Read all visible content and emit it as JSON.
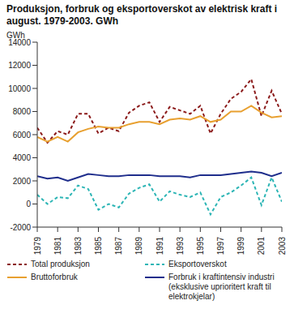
{
  "chart_data": {
    "type": "line",
    "title": "Produksjon, forbruk og eksportoverskot av elektrisk kraft i august. 1979-2003. GWh",
    "y_label": "GWh",
    "x": [
      1979,
      1980,
      1981,
      1982,
      1983,
      1984,
      1985,
      1986,
      1987,
      1988,
      1989,
      1990,
      1991,
      1992,
      1993,
      1994,
      1995,
      1996,
      1997,
      1998,
      1999,
      2000,
      2001,
      2002,
      2003
    ],
    "xlim": [
      1979,
      2003
    ],
    "xticks": [
      1979,
      1981,
      1983,
      1985,
      1987,
      1989,
      1991,
      1993,
      1995,
      1997,
      1999,
      2001,
      2003
    ],
    "ylim": [
      -2000,
      14000
    ],
    "yticks": [
      -2000,
      0,
      2000,
      4000,
      6000,
      8000,
      10000,
      12000,
      14000
    ],
    "grid": false,
    "legend": "bottom",
    "series": [
      {
        "name": "Total produksjon",
        "color": "#8b1a1a",
        "line_style": "dashed",
        "values": [
          6600,
          5300,
          6300,
          6000,
          7800,
          7800,
          6100,
          6600,
          6300,
          7900,
          8500,
          8800,
          7100,
          8400,
          8100,
          7800,
          8500,
          6100,
          7800,
          9100,
          9700,
          10800,
          7600,
          9800,
          7800
        ]
      },
      {
        "name": "Eksportoverskot",
        "color": "#2cb5b5",
        "line_style": "dashed",
        "values": [
          800,
          0,
          600,
          500,
          1600,
          1300,
          -500,
          0,
          -300,
          900,
          1400,
          1700,
          200,
          1100,
          800,
          600,
          1000,
          -900,
          600,
          1000,
          1600,
          2300,
          -100,
          2300,
          200
        ]
      },
      {
        "name": "Bruttoforbruk",
        "color": "#e8a030",
        "line_style": "solid",
        "values": [
          5800,
          5400,
          5800,
          5400,
          6200,
          6500,
          6700,
          6600,
          6600,
          6900,
          7100,
          7100,
          6900,
          7300,
          7400,
          7300,
          7600,
          7100,
          7300,
          8000,
          8000,
          8500,
          7900,
          7500,
          7600
        ]
      },
      {
        "name": "Forbruk i kraftintensiv industri (eksklusive uprioritert kraft til elektrokjelar)",
        "color": "#1f2e8c",
        "line_style": "solid",
        "values": [
          2400,
          2200,
          2300,
          2000,
          2300,
          2600,
          2500,
          2400,
          2400,
          2500,
          2500,
          2500,
          2400,
          2400,
          2400,
          2300,
          2500,
          2500,
          2500,
          2600,
          2700,
          2800,
          2700,
          2400,
          2700
        ]
      }
    ]
  }
}
